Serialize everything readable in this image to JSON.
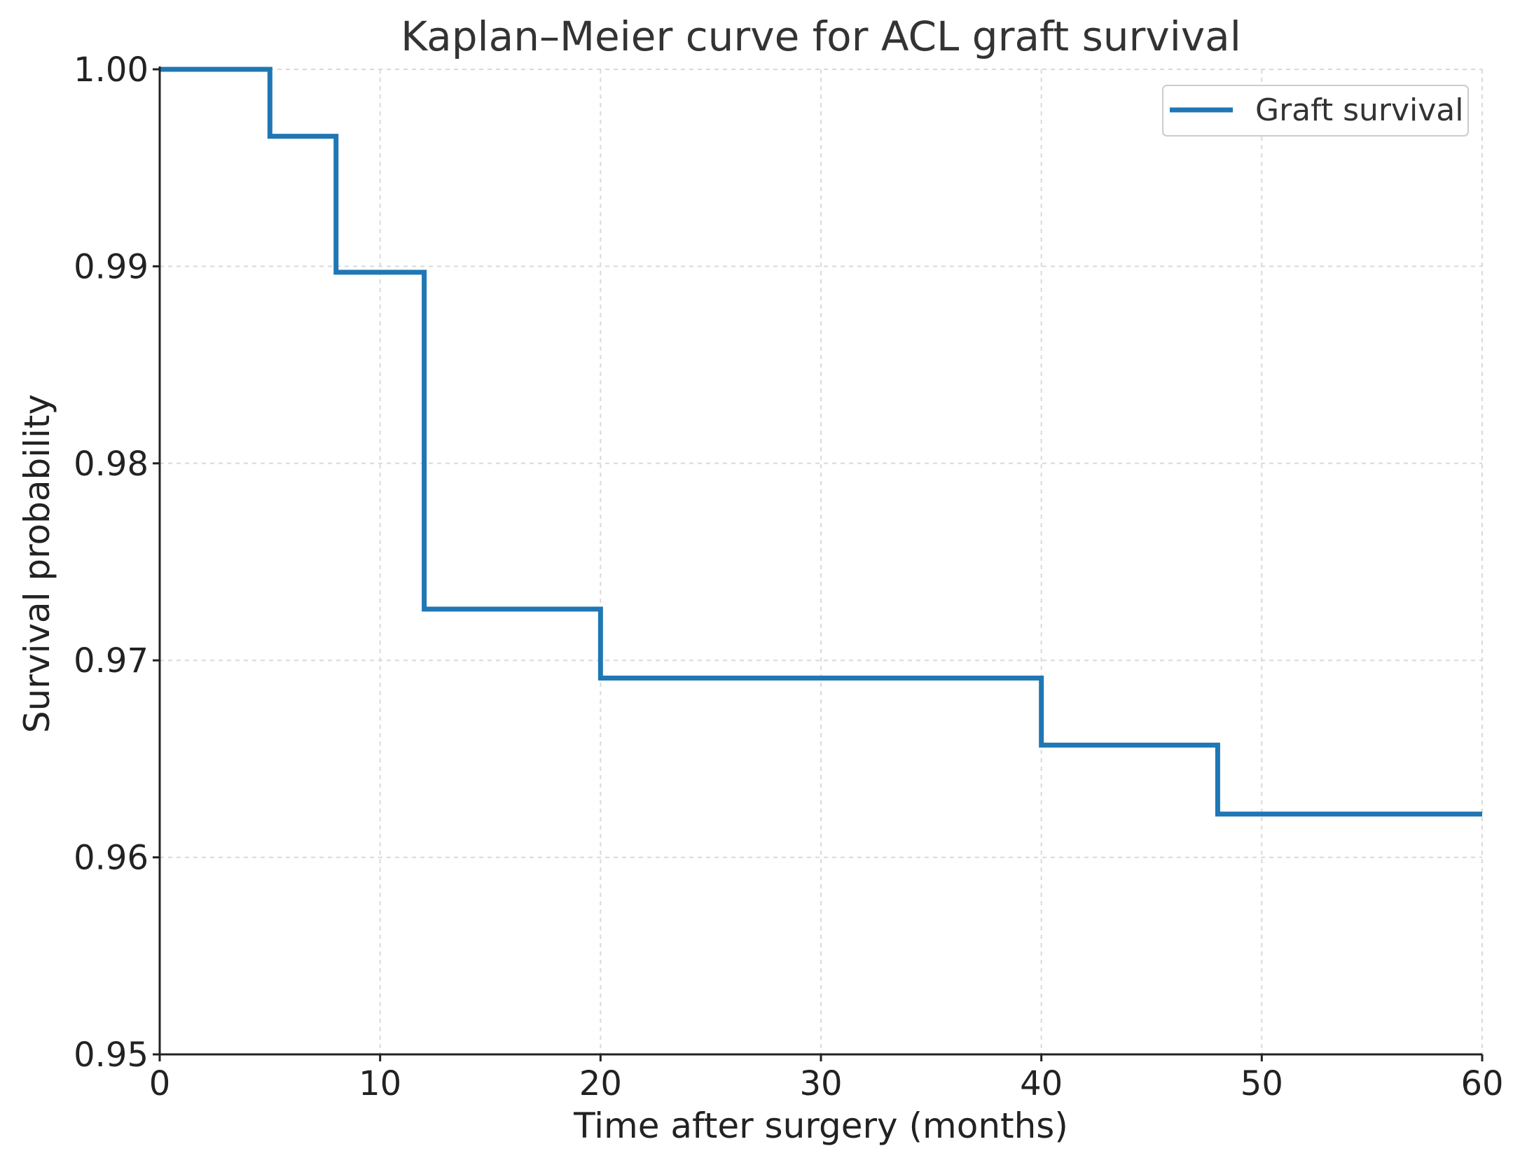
{
  "chart_data": {
    "type": "line",
    "step": "post",
    "title": "Kaplan–Meier curve for ACL graft survival",
    "xlabel": "Time after surgery (months)",
    "ylabel": "Survival probability",
    "xlim": [
      0,
      60
    ],
    "ylim": [
      0.95,
      1.0
    ],
    "xticks": [
      0,
      10,
      20,
      30,
      40,
      50,
      60
    ],
    "xtick_labels": [
      "0",
      "10",
      "20",
      "30",
      "40",
      "50",
      "60"
    ],
    "yticks": [
      0.95,
      0.96,
      0.97,
      0.98,
      0.99,
      1.0
    ],
    "ytick_labels": [
      "0.95",
      "0.96",
      "0.97",
      "0.98",
      "0.99",
      "1.00"
    ],
    "grid": true,
    "legend_position": "top-right",
    "series": [
      {
        "name": "Graft survival",
        "color": "#1f77b4",
        "x": [
          0,
          5,
          8,
          12,
          20,
          40,
          48,
          60
        ],
        "y": [
          1.0,
          0.9966,
          0.9897,
          0.9726,
          0.9691,
          0.9657,
          0.9622,
          0.9622
        ]
      }
    ]
  }
}
